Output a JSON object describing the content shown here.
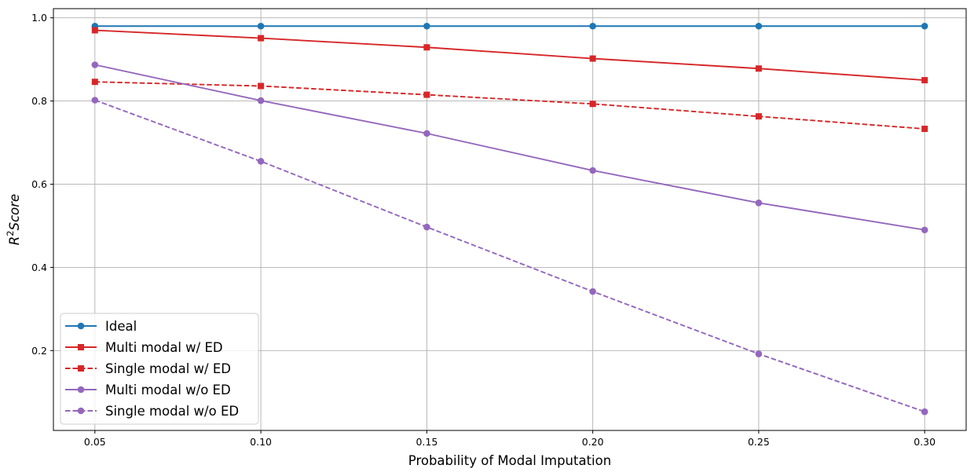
{
  "chart_data": {
    "type": "line",
    "xlabel": "Probability of Modal Imputation",
    "ylabel_base": "R",
    "ylabel_sup": "2",
    "ylabel_rest": "Score",
    "x": [
      0.05,
      0.1,
      0.15,
      0.2,
      0.25,
      0.3
    ],
    "xlim": [
      0.0375,
      0.3125
    ],
    "ylim": [
      0.008,
      1.022
    ],
    "xticks": [
      0.05,
      0.1,
      0.15,
      0.2,
      0.25,
      0.3
    ],
    "xtick_labels": [
      "0.05",
      "0.10",
      "0.15",
      "0.20",
      "0.25",
      "0.30"
    ],
    "yticks": [
      0.2,
      0.4,
      0.6,
      0.8,
      1.0
    ],
    "ytick_labels": [
      "0.2",
      "0.4",
      "0.6",
      "0.8",
      "1.0"
    ],
    "grid": true,
    "legend_position": "lower-left",
    "series": [
      {
        "name": "Ideal",
        "values": [
          0.98,
          0.98,
          0.98,
          0.98,
          0.98,
          0.98
        ],
        "color": "#1f77b4",
        "linestyle": "solid",
        "marker": "circle"
      },
      {
        "name": "Multi modal w/ ED",
        "values": [
          0.97,
          0.951,
          0.929,
          0.902,
          0.878,
          0.85
        ],
        "color": "#d62728",
        "linestyle": "solid",
        "marker": "square"
      },
      {
        "name": "Single modal w/ ED",
        "values": [
          0.846,
          0.836,
          0.815,
          0.793,
          0.763,
          0.733
        ],
        "color": "#d62728",
        "linestyle": "dashed",
        "marker": "square"
      },
      {
        "name": "Multi modal w/o ED",
        "values": [
          0.887,
          0.801,
          0.722,
          0.633,
          0.555,
          0.49
        ],
        "color": "#9467bd",
        "linestyle": "solid",
        "marker": "circle"
      },
      {
        "name": "Single modal w/o ED",
        "values": [
          0.802,
          0.655,
          0.497,
          0.342,
          0.192,
          0.053
        ],
        "color": "#9467bd",
        "linestyle": "dashed",
        "marker": "circle"
      }
    ]
  }
}
